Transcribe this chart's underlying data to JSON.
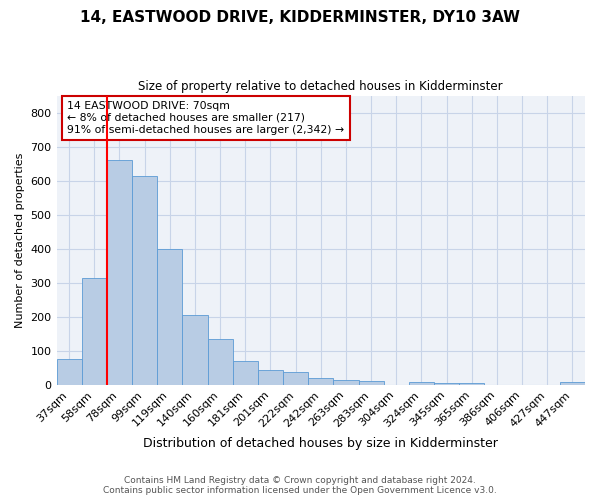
{
  "title": "14, EASTWOOD DRIVE, KIDDERMINSTER, DY10 3AW",
  "subtitle": "Size of property relative to detached houses in Kidderminster",
  "xlabel": "Distribution of detached houses by size in Kidderminster",
  "ylabel": "Number of detached properties",
  "categories": [
    "37sqm",
    "58sqm",
    "78sqm",
    "99sqm",
    "119sqm",
    "140sqm",
    "160sqm",
    "181sqm",
    "201sqm",
    "222sqm",
    "242sqm",
    "263sqm",
    "283sqm",
    "304sqm",
    "324sqm",
    "345sqm",
    "365sqm",
    "386sqm",
    "406sqm",
    "427sqm",
    "447sqm"
  ],
  "values": [
    75,
    315,
    660,
    615,
    400,
    205,
    135,
    70,
    45,
    38,
    20,
    15,
    12,
    0,
    8,
    5,
    5,
    0,
    0,
    0,
    8
  ],
  "bar_color": "#b8cce4",
  "bar_edge_color": "#5b9bd5",
  "red_line_index": 2,
  "annotation_text": "14 EASTWOOD DRIVE: 70sqm\n← 8% of detached houses are smaller (217)\n91% of semi-detached houses are larger (2,342) →",
  "annotation_box_color": "#ffffff",
  "annotation_box_edge_color": "#cc0000",
  "footer_line1": "Contains HM Land Registry data © Crown copyright and database right 2024.",
  "footer_line2": "Contains public sector information licensed under the Open Government Licence v3.0.",
  "ylim": [
    0,
    850
  ],
  "yticks": [
    0,
    100,
    200,
    300,
    400,
    500,
    600,
    700,
    800
  ],
  "grid_color": "#c8d4e8",
  "background_color": "#eef2f8"
}
